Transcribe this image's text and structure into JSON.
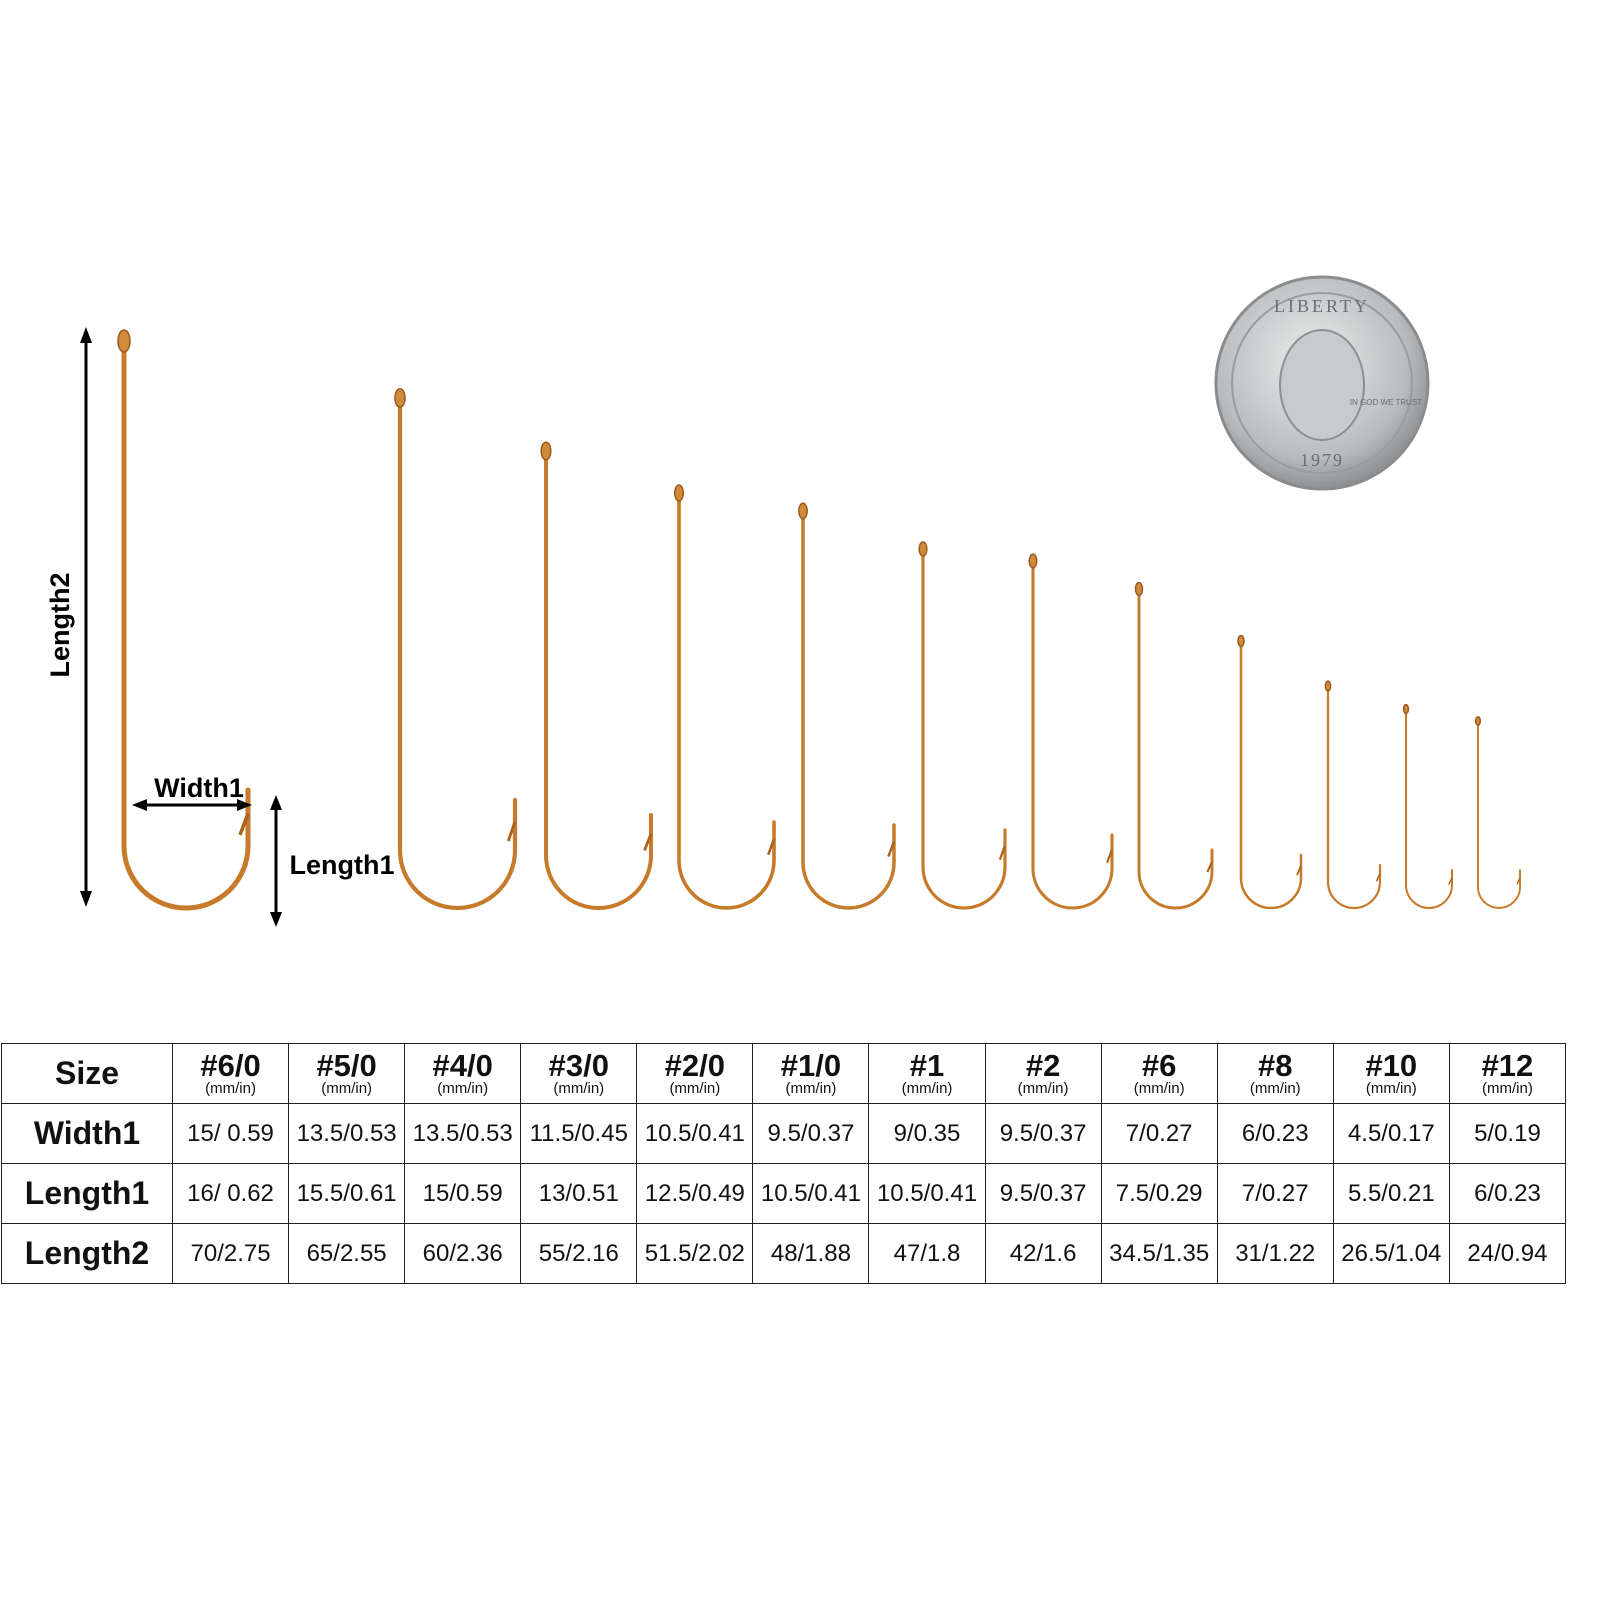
{
  "diagram": {
    "length2_label": "Length2",
    "width1_label": "Width1",
    "length1_label": "Length1"
  },
  "coin": {
    "top_text": "LIBERTY",
    "motto": "IN GOD WE TRUST",
    "year": "1979"
  },
  "table": {
    "header": "Size",
    "unit": "(mm/in)",
    "sizes": [
      "#6/0",
      "#5/0",
      "#4/0",
      "#3/0",
      "#2/0",
      "#1/0",
      "#1",
      "#2",
      "#6",
      "#8",
      "#10",
      "#12"
    ],
    "rows": [
      {
        "label": "Width1",
        "cells": [
          "15/ 0.59",
          "13.5/0.53",
          "13.5/0.53",
          "11.5/0.45",
          "10.5/0.41",
          "9.5/0.37",
          "9/0.35",
          "9.5/0.37",
          "7/0.27",
          "6/0.23",
          "4.5/0.17",
          "5/0.19"
        ]
      },
      {
        "label": "Length1",
        "cells": [
          "16/ 0.62",
          "15.5/0.61",
          "15/0.59",
          "13/0.51",
          "12.5/0.49",
          "10.5/0.41",
          "10.5/0.41",
          "9.5/0.37",
          "7.5/0.29",
          "7/0.27",
          "5.5/0.21",
          "6/0.23"
        ]
      },
      {
        "label": "Length2",
        "cells": [
          "70/2.75",
          "65/2.55",
          "60/2.36",
          "55/2.16",
          "51.5/2.02",
          "48/1.88",
          "47/1.8",
          "42/1.6",
          "34.5/1.35",
          "31/1.22",
          "26.5/1.04",
          "24/0.94"
        ]
      }
    ]
  }
}
